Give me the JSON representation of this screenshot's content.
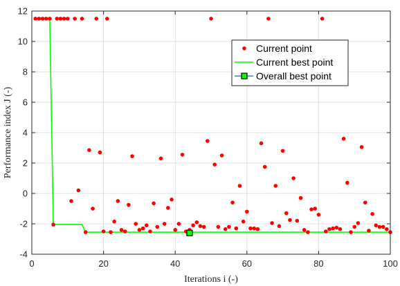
{
  "chart_data": {
    "type": "scatter",
    "title": "",
    "xlabel": "Iterations i (-)",
    "ylabel": "Performance index J (-)",
    "xlim": [
      0,
      100
    ],
    "ylim": [
      -4,
      12
    ],
    "xticks": [
      "0",
      "20",
      "40",
      "60",
      "80",
      "100"
    ],
    "yticks": [
      "-4",
      "-2",
      "0",
      "2",
      "4",
      "6",
      "8",
      "10",
      "12"
    ],
    "grid": true,
    "legend_position": "top-right",
    "colors": {
      "current_point": "#ff0000",
      "current_best": "#00ff00",
      "overall_best_fill": "#00ff00",
      "overall_best_edge": "#000000",
      "overall_best_line": "#0072bd"
    },
    "series": [
      {
        "name": "Current point",
        "kind": "scatter",
        "points": [
          [
            1,
            11.5
          ],
          [
            2,
            11.5
          ],
          [
            3,
            11.5
          ],
          [
            4,
            11.5
          ],
          [
            5,
            11.5
          ],
          [
            6,
            -2.05
          ],
          [
            7,
            11.5
          ],
          [
            8,
            11.5
          ],
          [
            9,
            11.5
          ],
          [
            10,
            11.5
          ],
          [
            11,
            -0.5
          ],
          [
            12,
            11.5
          ],
          [
            13,
            0.2
          ],
          [
            14,
            11.5
          ],
          [
            15,
            -2.55
          ],
          [
            16,
            2.85
          ],
          [
            17,
            -1.0
          ],
          [
            18,
            11.5
          ],
          [
            19,
            2.7
          ],
          [
            20,
            -2.5
          ],
          [
            21,
            11.5
          ],
          [
            22,
            -2.55
          ],
          [
            23,
            -1.85
          ],
          [
            24,
            -0.5
          ],
          [
            25,
            -2.4
          ],
          [
            26,
            -2.5
          ],
          [
            27,
            -0.75
          ],
          [
            28,
            2.45
          ],
          [
            29,
            -2.0
          ],
          [
            30,
            -2.4
          ],
          [
            31,
            -2.3
          ],
          [
            32,
            -2.1
          ],
          [
            33,
            -2.5
          ],
          [
            34,
            -0.65
          ],
          [
            35,
            -2.2
          ],
          [
            36,
            2.3
          ],
          [
            37,
            -2.0
          ],
          [
            38,
            -0.95
          ],
          [
            39,
            -0.4
          ],
          [
            40,
            -2.4
          ],
          [
            41,
            -2.0
          ],
          [
            42,
            2.55
          ],
          [
            43,
            -2.5
          ],
          [
            44,
            -2.4
          ],
          [
            45,
            -2.1
          ],
          [
            46,
            -1.9
          ],
          [
            47,
            -2.15
          ],
          [
            48,
            -2.2
          ],
          [
            49,
            3.45
          ],
          [
            50,
            11.5
          ],
          [
            51,
            1.9
          ],
          [
            52,
            -2.2
          ],
          [
            53,
            2.5
          ],
          [
            54,
            -2.35
          ],
          [
            55,
            -2.2
          ],
          [
            56,
            -0.6
          ],
          [
            57,
            -2.3
          ],
          [
            58,
            0.5
          ],
          [
            59,
            -1.85
          ],
          [
            60,
            -1.2
          ],
          [
            61,
            -2.3
          ],
          [
            62,
            -2.3
          ],
          [
            63,
            -2.35
          ],
          [
            64,
            3.3
          ],
          [
            65,
            1.75
          ],
          [
            66,
            11.5
          ],
          [
            67,
            -1.95
          ],
          [
            68,
            0.5
          ],
          [
            69,
            -2.15
          ],
          [
            70,
            2.8
          ],
          [
            71,
            -1.3
          ],
          [
            72,
            -1.75
          ],
          [
            73,
            1.0
          ],
          [
            74,
            -1.8
          ],
          [
            75,
            -0.3
          ],
          [
            76,
            -2.4
          ],
          [
            77,
            -2.55
          ],
          [
            78,
            -1.05
          ],
          [
            79,
            -1.0
          ],
          [
            80,
            -1.4
          ],
          [
            81,
            11.5
          ],
          [
            82,
            -2.5
          ],
          [
            83,
            -2.35
          ],
          [
            84,
            -2.3
          ],
          [
            85,
            -2.25
          ],
          [
            86,
            -2.35
          ],
          [
            87,
            3.6
          ],
          [
            88,
            0.7
          ],
          [
            89,
            -2.55
          ],
          [
            90,
            -2.2
          ],
          [
            91,
            -1.95
          ],
          [
            92,
            3.05
          ],
          [
            93,
            -0.6
          ],
          [
            94,
            -2.45
          ],
          [
            95,
            -1.35
          ],
          [
            96,
            -2.1
          ],
          [
            97,
            -2.2
          ],
          [
            98,
            -2.2
          ],
          [
            99,
            -2.35
          ],
          [
            100,
            -2.55
          ]
        ]
      },
      {
        "name": "Current best point",
        "kind": "line",
        "points": [
          [
            1,
            11.5
          ],
          [
            5,
            11.5
          ],
          [
            6,
            -2.05
          ],
          [
            14,
            -2.05
          ],
          [
            15,
            -2.55
          ],
          [
            100,
            -2.55
          ]
        ]
      },
      {
        "name": "Overall best point",
        "kind": "marker",
        "points": [
          [
            44,
            -2.6
          ]
        ]
      }
    ]
  }
}
